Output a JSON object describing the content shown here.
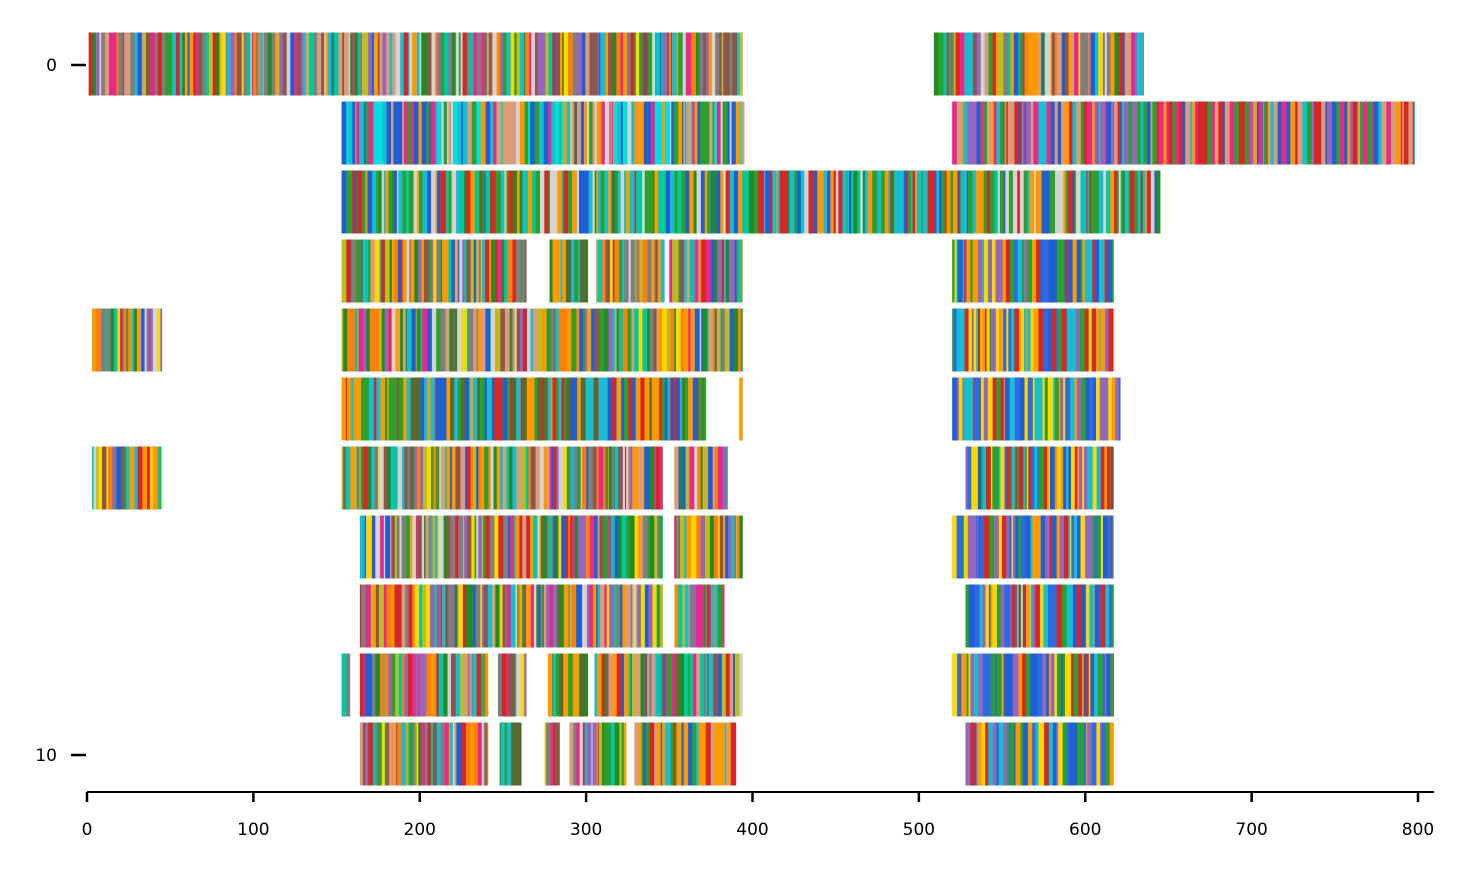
{
  "chart_data": {
    "type": "heatmap",
    "title": "",
    "xlabel": "",
    "ylabel": "",
    "xlim": [
      0,
      810
    ],
    "ylim": [
      10.5,
      -0.5
    ],
    "grid": false,
    "legend": "none",
    "x_ticks": [
      "0",
      "100",
      "200",
      "300",
      "400",
      "500",
      "600",
      "700",
      "800"
    ],
    "y_ticks": [
      "0",
      "10"
    ],
    "rows": [
      {
        "row": 0,
        "segments": [
          {
            "start": 1,
            "end": 394,
            "palette": "mixed"
          },
          {
            "start": 509,
            "end": 635,
            "palette": "mixed"
          }
        ]
      },
      {
        "row": 1,
        "segments": [
          {
            "start": 153,
            "end": 395,
            "palette": "cyan-orange"
          },
          {
            "start": 520,
            "end": 798,
            "palette": "blue-orange"
          }
        ]
      },
      {
        "row": 2,
        "segments": [
          {
            "start": 153,
            "end": 645,
            "palette": "green-cyan"
          }
        ]
      },
      {
        "row": 3,
        "segments": [
          {
            "start": 153,
            "end": 264,
            "palette": "mixed"
          },
          {
            "start": 278,
            "end": 301,
            "palette": "green"
          },
          {
            "start": 306,
            "end": 347,
            "palette": "mixed"
          },
          {
            "start": 350,
            "end": 394,
            "palette": "mixed"
          },
          {
            "start": 520,
            "end": 617,
            "palette": "blue"
          }
        ]
      },
      {
        "row": 4,
        "segments": [
          {
            "start": 3,
            "end": 45,
            "palette": "mixed"
          },
          {
            "start": 153,
            "end": 394,
            "palette": "mixed"
          },
          {
            "start": 520,
            "end": 617,
            "palette": "blue"
          }
        ]
      },
      {
        "row": 5,
        "segments": [
          {
            "start": 153,
            "end": 372,
            "palette": "orange-green"
          },
          {
            "start": 392,
            "end": 394,
            "palette": "orange"
          },
          {
            "start": 520,
            "end": 621,
            "palette": "blue"
          }
        ]
      },
      {
        "row": 6,
        "segments": [
          {
            "start": 3,
            "end": 45,
            "palette": "mixed"
          },
          {
            "start": 153,
            "end": 346,
            "palette": "mixed"
          },
          {
            "start": 353,
            "end": 385,
            "palette": "mixed"
          },
          {
            "start": 528,
            "end": 617,
            "palette": "blue"
          }
        ]
      },
      {
        "row": 7,
        "segments": [
          {
            "start": 164,
            "end": 346,
            "palette": "mixed"
          },
          {
            "start": 353,
            "end": 394,
            "palette": "mixed"
          },
          {
            "start": 520,
            "end": 617,
            "palette": "blue"
          }
        ]
      },
      {
        "row": 8,
        "segments": [
          {
            "start": 164,
            "end": 346,
            "palette": "mixed"
          },
          {
            "start": 353,
            "end": 383,
            "palette": "mixed"
          },
          {
            "start": 528,
            "end": 617,
            "palette": "blue"
          }
        ]
      },
      {
        "row": 9,
        "segments": [
          {
            "start": 153,
            "end": 158,
            "palette": "mixed"
          },
          {
            "start": 164,
            "end": 241,
            "palette": "mixed"
          },
          {
            "start": 247,
            "end": 264,
            "palette": "mixed"
          },
          {
            "start": 277,
            "end": 301,
            "palette": "green"
          },
          {
            "start": 305,
            "end": 394,
            "palette": "mixed"
          },
          {
            "start": 520,
            "end": 617,
            "palette": "blue"
          }
        ]
      },
      {
        "row": 10,
        "segments": [
          {
            "start": 164,
            "end": 241,
            "palette": "mixed"
          },
          {
            "start": 248,
            "end": 261,
            "palette": "green"
          },
          {
            "start": 275,
            "end": 284,
            "palette": "mixed"
          },
          {
            "start": 290,
            "end": 324,
            "palette": "mixed"
          },
          {
            "start": 329,
            "end": 390,
            "palette": "blue-green"
          },
          {
            "start": 528,
            "end": 617,
            "palette": "blue"
          }
        ]
      }
    ],
    "colors": {
      "mixed": [
        "#ff9900",
        "#2ca02c",
        "#1f5fd6",
        "#e7298a",
        "#d62728",
        "#dc9c7a",
        "#17becf",
        "#8c564b",
        "#bcbd22",
        "#ffd700",
        "#9467bd",
        "#00c8a0",
        "#ff7f0e",
        "#7f7f7f",
        "#d3d3d3",
        "#228b22"
      ],
      "cyan-orange": [
        "#00dede",
        "#ff9900",
        "#dc9c7a",
        "#2ca02c",
        "#d3d3d3",
        "#1f5fd6",
        "#17becf",
        "#e7298a"
      ],
      "blue-orange": [
        "#1f5fd6",
        "#ff9900",
        "#dc9c7a",
        "#2ca02c",
        "#d62728",
        "#9467bd",
        "#e7298a",
        "#17becf"
      ],
      "green-cyan": [
        "#2ca02c",
        "#00c8a0",
        "#17becf",
        "#ff9900",
        "#228b22",
        "#1f5fd6",
        "#d62728",
        "#d3d3d3"
      ],
      "green": [
        "#2ca02c",
        "#228b22",
        "#556b2f",
        "#17becf",
        "#ff9900"
      ],
      "orange-green": [
        "#ff9900",
        "#2ca02c",
        "#1f5fd6",
        "#17becf",
        "#d62728",
        "#556b2f"
      ],
      "blue": [
        "#1f5fd6",
        "#2c6be0",
        "#d62728",
        "#ff9900",
        "#2ca02c",
        "#9467bd",
        "#17becf",
        "#ffd700"
      ],
      "blue-green": [
        "#1f5fd6",
        "#2ca02c",
        "#17becf",
        "#ff9900",
        "#d62728",
        "#dc9c7a"
      ],
      "orange": [
        "#ff9900"
      ]
    }
  }
}
